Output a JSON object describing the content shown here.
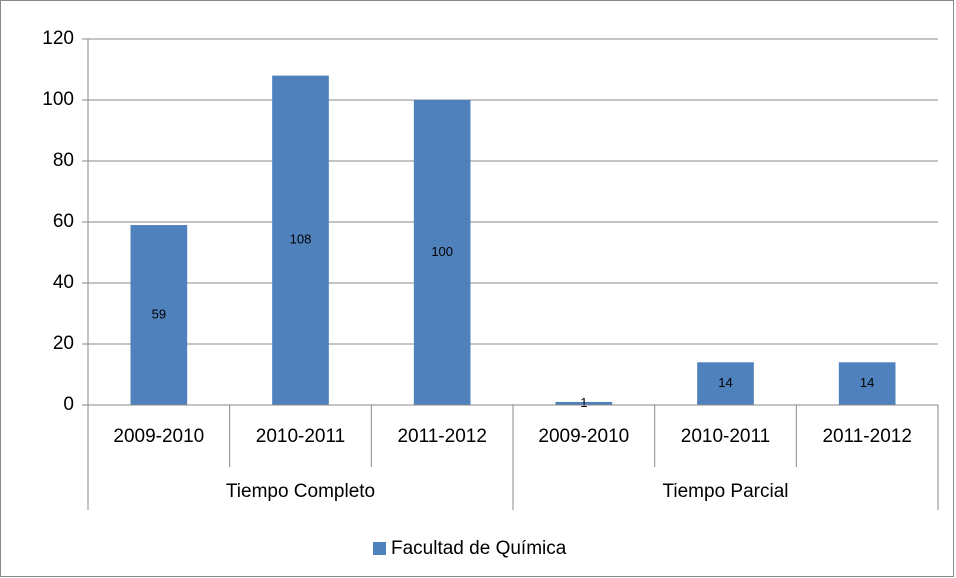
{
  "chart_data": {
    "type": "bar",
    "categories": [
      "2009-2010",
      "2010-2011",
      "2011-2012",
      "2009-2010",
      "2010-2011",
      "2011-2012"
    ],
    "group_labels": [
      "Tiempo Completo",
      "Tiempo Parcial"
    ],
    "series": [
      {
        "name": "Facultad de Química",
        "color": "#4f81bd",
        "values": [
          59,
          108,
          100,
          1,
          14,
          14
        ]
      }
    ],
    "ylim": [
      0,
      120
    ],
    "yticks": [
      0,
      20,
      40,
      60,
      80,
      100,
      120
    ],
    "grid": true,
    "legend": "bottom"
  }
}
